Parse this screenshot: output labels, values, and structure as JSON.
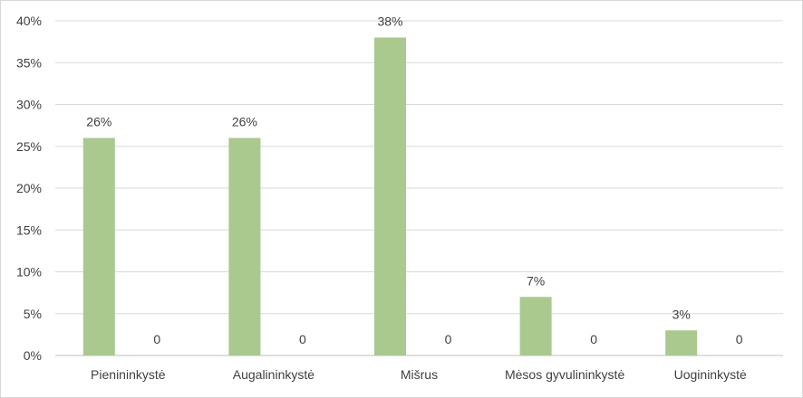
{
  "chart_data": {
    "type": "bar",
    "title": "",
    "xlabel": "",
    "ylabel": "",
    "categories": [
      "Pienininkystė",
      "Augalininkystė",
      "Mišrus",
      "Mėsos gyvulininkystė",
      "Uogininkystė"
    ],
    "series": [
      {
        "values": [
          26,
          26,
          38,
          7,
          3
        ],
        "labels": [
          "26%",
          "26%",
          "38%",
          "7%",
          "3%"
        ],
        "color": "#a9c98f"
      },
      {
        "values": [
          0,
          0,
          0,
          0,
          0
        ],
        "labels": [
          "0",
          "0",
          "0",
          "0",
          "0"
        ],
        "color": "#ed7d31"
      }
    ],
    "ylim": [
      0,
      40
    ],
    "yticks": [
      0,
      5,
      10,
      15,
      20,
      25,
      30,
      35,
      40
    ],
    "ytick_labels": [
      "0%",
      "5%",
      "10%",
      "15%",
      "20%",
      "25%",
      "30%",
      "35%",
      "40%"
    ],
    "grid": true,
    "legend": "none"
  }
}
